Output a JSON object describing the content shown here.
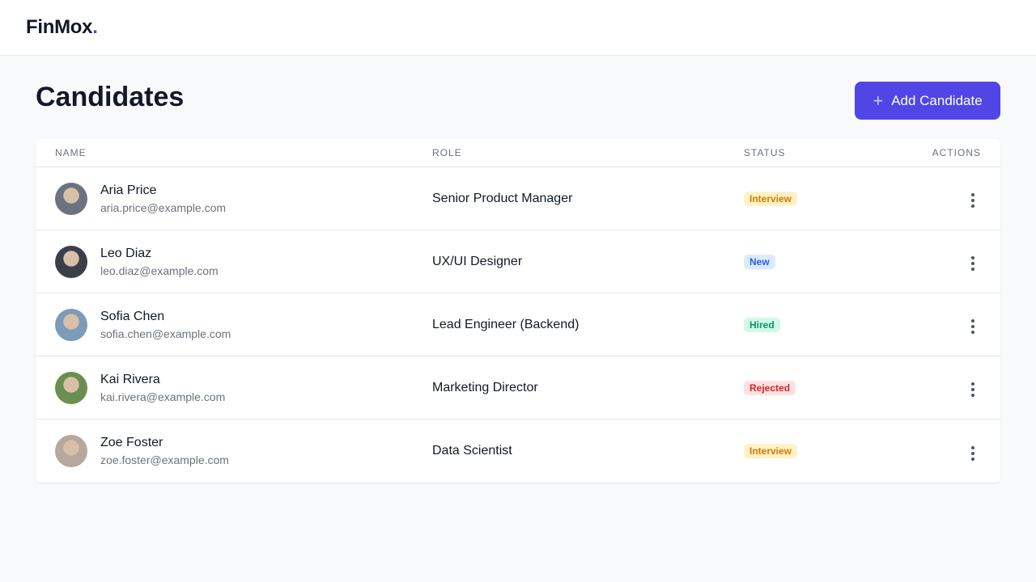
{
  "brand": {
    "name": "FinMox",
    "dot": ".",
    "accent": "#4f46e5"
  },
  "page": {
    "title": "Candidates",
    "add_label": "Add Candidate",
    "add_icon": "plus-icon"
  },
  "table": {
    "headers": [
      "NAME",
      "ROLE",
      "STATUS",
      "ACTIONS"
    ],
    "rows": [
      {
        "name": "Aria Price",
        "email": "aria.price@example.com",
        "role": "Senior Product Manager",
        "status": "Interview"
      },
      {
        "name": "Leo Diaz",
        "email": "leo.diaz@example.com",
        "role": "UX/UI Designer",
        "status": "New"
      },
      {
        "name": "Sofia Chen",
        "email": "sofia.chen@example.com",
        "role": "Lead Engineer (Backend)",
        "status": "Hired"
      },
      {
        "name": "Kai Rivera",
        "email": "kai.rivera@example.com",
        "role": "Marketing Director",
        "status": "Rejected"
      },
      {
        "name": "Zoe Foster",
        "email": "zoe.foster@example.com",
        "role": "Data Scientist",
        "status": "Interview"
      }
    ]
  },
  "status_colors": {
    "Interview": {
      "bg": "#fef3c7",
      "fg": "#d97706"
    },
    "New": {
      "bg": "#dbeafe",
      "fg": "#2563eb"
    },
    "Hired": {
      "bg": "#d1fae5",
      "fg": "#059669"
    },
    "Rejected": {
      "bg": "#fee2e2",
      "fg": "#dc2626"
    }
  },
  "avatar_colors": [
    "#6b7280",
    "#3b3f4a",
    "#7c9bb8",
    "#6a8f4e",
    "#b8a79e"
  ]
}
